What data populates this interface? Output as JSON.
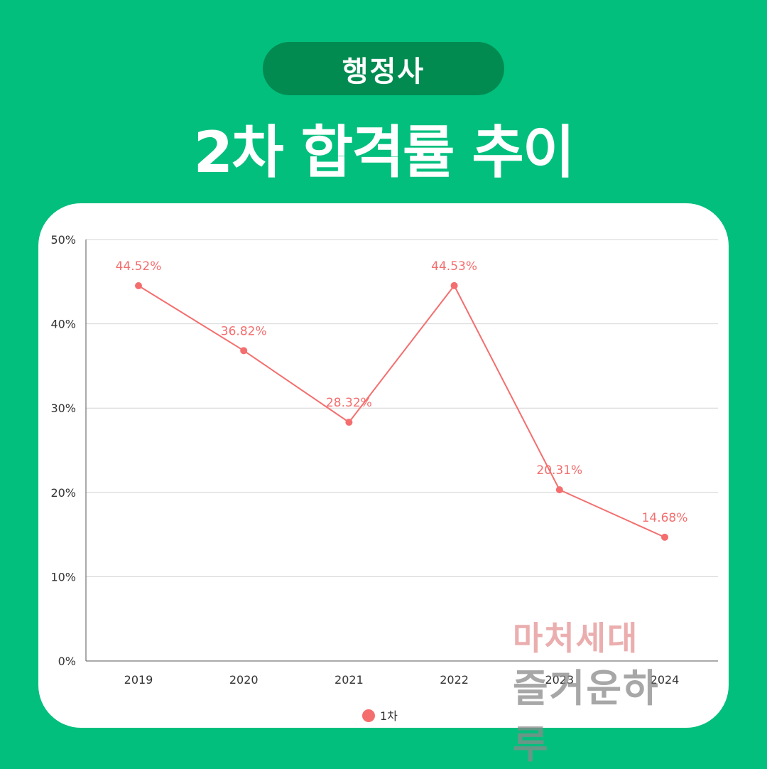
{
  "header": {
    "badge": "행정사",
    "title": "2차 합격률 추이"
  },
  "colors": {
    "background": "#02bf7e",
    "badge": "#028b50",
    "series": "#f46e6e"
  },
  "watermark": {
    "line1": "마처세대",
    "line2": "즐거운하루"
  },
  "chart_data": {
    "type": "line",
    "categories": [
      "2019",
      "2020",
      "2021",
      "2022",
      "2023",
      "2024"
    ],
    "series": [
      {
        "name": "1차",
        "values": [
          44.52,
          36.82,
          28.32,
          44.53,
          20.31,
          14.68
        ],
        "labels": [
          "44.52%",
          "36.82%",
          "28.32%",
          "44.53%",
          "20.31%",
          "14.68%"
        ]
      }
    ],
    "yticks": [
      "0%",
      "10%",
      "20%",
      "30%",
      "40%",
      "50%"
    ],
    "ylim": [
      0,
      50
    ],
    "grid": true,
    "legend": "bottom-center"
  }
}
